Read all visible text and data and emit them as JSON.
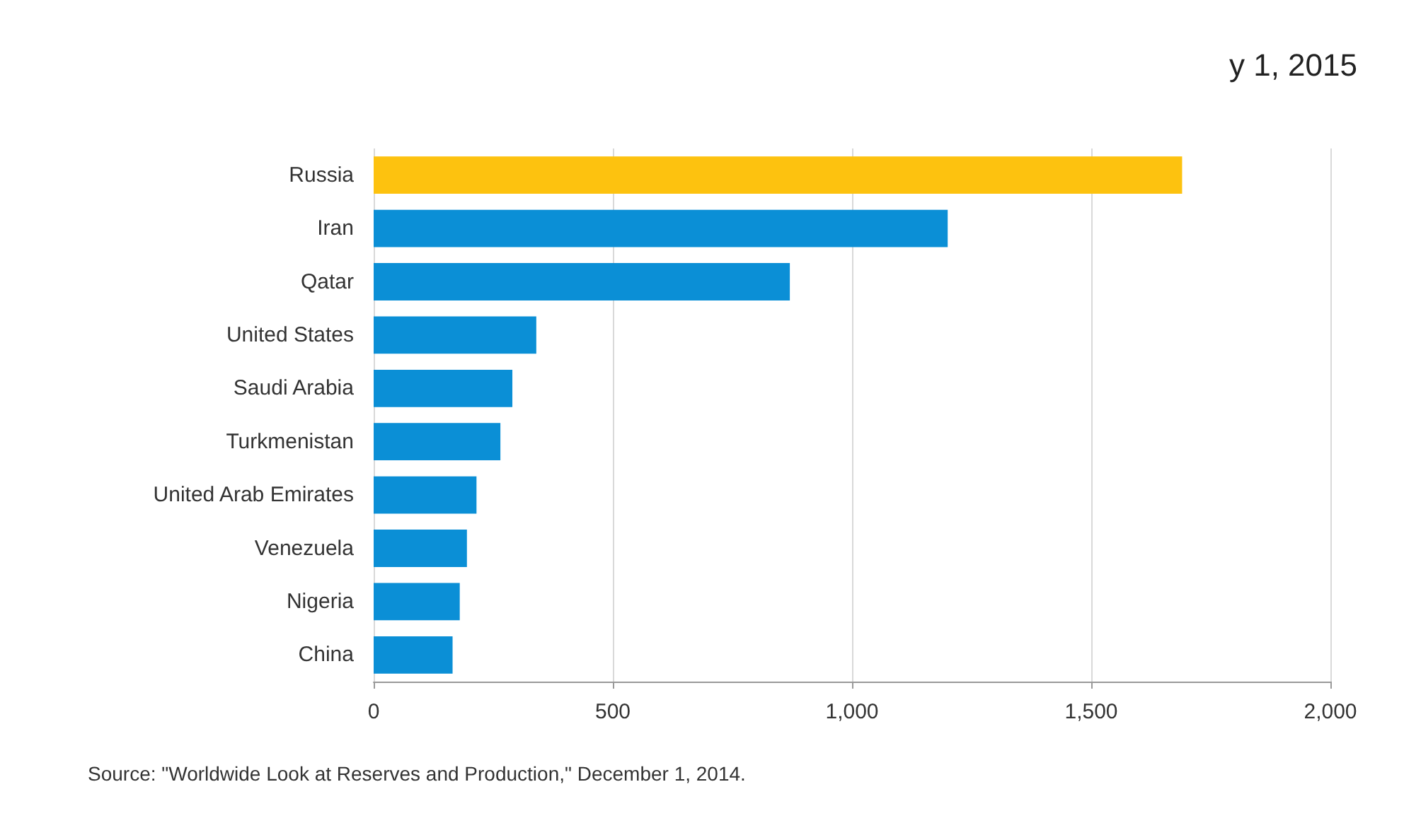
{
  "chart_data": {
    "type": "bar",
    "orientation": "horizontal",
    "title": "y 1, 2015",
    "categories": [
      "Russia",
      "Iran",
      "Qatar",
      "United States",
      "Saudi Arabia",
      "Turkmenistan",
      "United Arab Emirates",
      "Venezuela",
      "Nigeria",
      "China"
    ],
    "values": [
      1690,
      1200,
      870,
      340,
      290,
      265,
      215,
      195,
      180,
      165
    ],
    "colors": [
      "#fdc20f",
      "#0b8fd6",
      "#0b8fd6",
      "#0b8fd6",
      "#0b8fd6",
      "#0b8fd6",
      "#0b8fd6",
      "#0b8fd6",
      "#0b8fd6",
      "#0b8fd6"
    ],
    "xlim": [
      0,
      2000
    ],
    "xticks": [
      0,
      500,
      {
        "value": 1000,
        "label": "1,000"
      },
      {
        "value": 1500,
        "label": "1,500"
      },
      {
        "value": 2000,
        "label": "2,000"
      }
    ],
    "grid": "x",
    "annotations": [
      "Source: \"Worldwide Look at Reserves and Production,\" December 1, 2014."
    ]
  }
}
